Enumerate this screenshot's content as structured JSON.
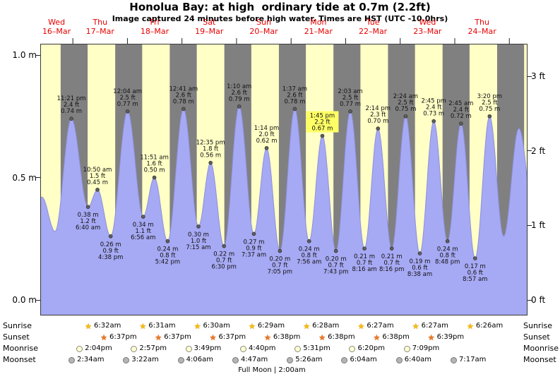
{
  "meta": {
    "title": "Honolua Bay: at high  ordinary tide at 0.7m (2.2ft)",
    "subtitle": "Image captured 24 minutes before high water. Times are HST (UTC -10.0hrs)"
  },
  "colors": {
    "night_bg": "#808080",
    "day_band": "#ffffc6",
    "tide_fill": "#a6a9f3",
    "tide_stroke": "#8d90e0",
    "day_label": "#e80000",
    "highlight": "#ffff66",
    "sunrise_icon": "#f5c000",
    "sunset_icon": "#f07818",
    "moonrise_icon": "#ffffd0",
    "moonset_icon": "#b5b5b5"
  },
  "y_axis": {
    "left_ticks": [
      {
        "label": "1.0 m",
        "m": 1.0
      },
      {
        "label": "0.5 m",
        "m": 0.5
      },
      {
        "label": "0.0 m",
        "m": 0.0
      }
    ],
    "right_ticks": [
      {
        "label": "3 ft",
        "m": 0.9144
      },
      {
        "label": "2 ft",
        "m": 0.6096
      },
      {
        "label": "1 ft",
        "m": 0.3048
      },
      {
        "label": "0 ft",
        "m": 0.0
      }
    ]
  },
  "x_axis": {
    "days": [
      {
        "dow": "Wed",
        "date": "16–Mar"
      },
      {
        "dow": "Thu",
        "date": "17–Mar"
      },
      {
        "dow": "Fri",
        "date": "18–Mar"
      },
      {
        "dow": "Sat",
        "date": "19–Mar"
      },
      {
        "dow": "Sun",
        "date": "20–Mar"
      },
      {
        "dow": "Mon",
        "date": "21–Mar"
      },
      {
        "dow": "Tue",
        "date": "22–Mar"
      },
      {
        "dow": "Wed",
        "date": "23–Mar"
      },
      {
        "dow": "Thu",
        "date": "24–Mar"
      }
    ]
  },
  "chart_data": {
    "type": "area",
    "title": "Tide height, Honolua Bay, 16–24 Mar",
    "x_unit": "hours from Wed 16-Mar 00:00 HST",
    "y_unit": "m",
    "t_start": 9.66,
    "t_end": 224,
    "ylim_m": [
      -0.063,
      1.046
    ],
    "sunrise_hour": 6.5,
    "sunset_hour": 18.63,
    "extremes": [
      {
        "t": 4.0,
        "m": 0.3
      },
      {
        "t": 10.33,
        "m": 0.42
      },
      {
        "t": 16.17,
        "m": 0.28
      },
      {
        "t": 23.35,
        "m": 0.74,
        "type": "high",
        "label": [
          "11:21 pm",
          "2.4 ft",
          "0.74 m"
        ]
      },
      {
        "t": 30.67,
        "m": 0.38,
        "type": "low",
        "label": [
          "0.38 m",
          "1.2 ft",
          "6:40 am"
        ]
      },
      {
        "t": 34.83,
        "m": 0.45,
        "type": "high",
        "label": [
          "10:50 am",
          "1.5 ft",
          "0.45 m"
        ]
      },
      {
        "t": 40.63,
        "m": 0.26,
        "type": "low",
        "label": [
          "0.26 m",
          "0.9 ft",
          "4:38 pm"
        ]
      },
      {
        "t": 48.07,
        "m": 0.77,
        "type": "high",
        "label": [
          "12:04 am",
          "2.5 ft",
          "0.77 m"
        ]
      },
      {
        "t": 54.93,
        "m": 0.34,
        "type": "low",
        "label": [
          "0.34 m",
          "1.1 ft",
          "6:56 am"
        ]
      },
      {
        "t": 59.85,
        "m": 0.5,
        "type": "high",
        "label": [
          "11:51 am",
          "1.6 ft",
          "0.50 m"
        ]
      },
      {
        "t": 65.7,
        "m": 0.24,
        "type": "low",
        "label": [
          "0.24 m",
          "0.8 ft",
          "5:42 pm"
        ]
      },
      {
        "t": 72.68,
        "m": 0.78,
        "type": "high",
        "label": [
          "12:41 am",
          "2.6 ft",
          "0.78 m"
        ]
      },
      {
        "t": 79.25,
        "m": 0.3,
        "type": "low",
        "label": [
          "0.30 m",
          "1.0 ft",
          "7:15 am"
        ]
      },
      {
        "t": 84.58,
        "m": 0.56,
        "type": "high",
        "label": [
          "12:35 pm",
          "1.8 ft",
          "0.56 m"
        ]
      },
      {
        "t": 90.5,
        "m": 0.22,
        "type": "low",
        "label": [
          "0.22 m",
          "0.7 ft",
          "6:30 pm"
        ]
      },
      {
        "t": 97.17,
        "m": 0.79,
        "type": "high",
        "label": [
          "1:10 am",
          "2.6 ft",
          "0.79 m"
        ]
      },
      {
        "t": 103.62,
        "m": 0.27,
        "type": "low",
        "label": [
          "0.27 m",
          "0.9 ft",
          "7:37 am"
        ]
      },
      {
        "t": 109.23,
        "m": 0.62,
        "type": "high",
        "label": [
          "1:14 pm",
          "2.0 ft",
          "0.62 m"
        ]
      },
      {
        "t": 115.08,
        "m": 0.2,
        "type": "low",
        "label": [
          "0.20 m",
          "0.7 ft",
          "7:05 pm"
        ]
      },
      {
        "t": 121.62,
        "m": 0.78,
        "type": "high",
        "label": [
          "1:37 am",
          "2.6 ft",
          "0.78 m"
        ]
      },
      {
        "t": 127.93,
        "m": 0.24,
        "type": "low",
        "label": [
          "0.24 m",
          "0.8 ft",
          "7:56 am"
        ]
      },
      {
        "t": 133.75,
        "m": 0.67,
        "type": "high",
        "highlight": true,
        "label": [
          "1:45 pm",
          "2.2 ft",
          "0.67 m"
        ]
      },
      {
        "t": 139.72,
        "m": 0.2,
        "type": "low",
        "label": [
          "0.20 m",
          "0.7 ft",
          "7:43 pm"
        ]
      },
      {
        "t": 146.05,
        "m": 0.77,
        "type": "high",
        "label": [
          "2:03 am",
          "2.5 ft",
          "0.77 m"
        ]
      },
      {
        "t": 152.27,
        "m": 0.21,
        "type": "low",
        "label": [
          "0.21 m",
          "0.7 ft",
          "8:16 am"
        ]
      },
      {
        "t": 158.23,
        "m": 0.7,
        "type": "high",
        "label": [
          "2:14 pm",
          "2.3 ft",
          "0.70 m"
        ]
      },
      {
        "t": 164.27,
        "m": 0.21,
        "type": "low",
        "label": [
          "0.21 m",
          "0.7 ft",
          "8:16 pm"
        ]
      },
      {
        "t": 170.4,
        "m": 0.75,
        "type": "high",
        "label": [
          "2:24 am",
          "2.5 ft",
          "0.75 m"
        ]
      },
      {
        "t": 176.63,
        "m": 0.19,
        "type": "low",
        "label": [
          "0.19 m",
          "0.6 ft",
          "8:38 am"
        ]
      },
      {
        "t": 182.75,
        "m": 0.73,
        "type": "high",
        "label": [
          "2:45 pm",
          "2.4 ft",
          "0.73 m"
        ]
      },
      {
        "t": 188.8,
        "m": 0.24,
        "type": "low",
        "label": [
          "0.24 m",
          "0.8 ft",
          "8:48 pm"
        ]
      },
      {
        "t": 194.75,
        "m": 0.72,
        "type": "high",
        "label": [
          "2:45 am",
          "2.4 ft",
          "0.72 m"
        ]
      },
      {
        "t": 200.95,
        "m": 0.17,
        "type": "low",
        "label": [
          "0.17 m",
          "0.6 ft",
          "8:57 am"
        ]
      },
      {
        "t": 207.33,
        "m": 0.75,
        "type": "high",
        "label": [
          "3:20 pm",
          "2.5 ft",
          "0.75 m"
        ]
      },
      {
        "t": 213.5,
        "m": 0.26
      },
      {
        "t": 220.2,
        "m": 0.7
      },
      {
        "t": 228.0,
        "m": 0.24
      }
    ]
  },
  "astro": {
    "rows": [
      {
        "name": "Sunrise",
        "icon": "sunrise-star-icon",
        "times": [
          {
            "day": 1,
            "time": "6:32am"
          },
          {
            "day": 2,
            "time": "6:31am"
          },
          {
            "day": 3,
            "time": "6:30am"
          },
          {
            "day": 4,
            "time": "6:29am"
          },
          {
            "day": 5,
            "time": "6:28am"
          },
          {
            "day": 6,
            "time": "6:27am"
          },
          {
            "day": 7,
            "time": "6:27am"
          },
          {
            "day": 8,
            "time": "6:26am"
          }
        ]
      },
      {
        "name": "Sunset",
        "icon": "sunset-star-icon",
        "times": [
          {
            "day": 1,
            "time": "6:37pm"
          },
          {
            "day": 2,
            "time": "6:37pm"
          },
          {
            "day": 3,
            "time": "6:37pm"
          },
          {
            "day": 4,
            "time": "6:38pm"
          },
          {
            "day": 5,
            "time": "6:38pm"
          },
          {
            "day": 6,
            "time": "6:38pm"
          },
          {
            "day": 7,
            "time": "6:39pm"
          }
        ]
      },
      {
        "name": "Moonrise",
        "icon": "moonrise-circle-icon",
        "times": [
          {
            "day": 1,
            "time": "2:04pm"
          },
          {
            "day": 2,
            "time": "2:57pm"
          },
          {
            "day": 3,
            "time": "3:49pm"
          },
          {
            "day": 4,
            "time": "4:40pm"
          },
          {
            "day": 5,
            "time": "5:31pm"
          },
          {
            "day": 6,
            "time": "6:20pm"
          },
          {
            "day": 7,
            "time": "7:09pm"
          }
        ]
      },
      {
        "name": "Moonset",
        "icon": "moonset-circle-icon",
        "times": [
          {
            "day": 1,
            "time": "2:34am"
          },
          {
            "day": 2,
            "time": "3:22am"
          },
          {
            "day": 3,
            "time": "4:06am"
          },
          {
            "day": 4,
            "time": "4:47am"
          },
          {
            "day": 5,
            "time": "5:26am"
          },
          {
            "day": 6,
            "time": "6:04am"
          },
          {
            "day": 7,
            "time": "6:40am"
          },
          {
            "day": 8,
            "time": "7:17am"
          }
        ]
      }
    ],
    "footer": "Full Moon | 2:00am"
  }
}
